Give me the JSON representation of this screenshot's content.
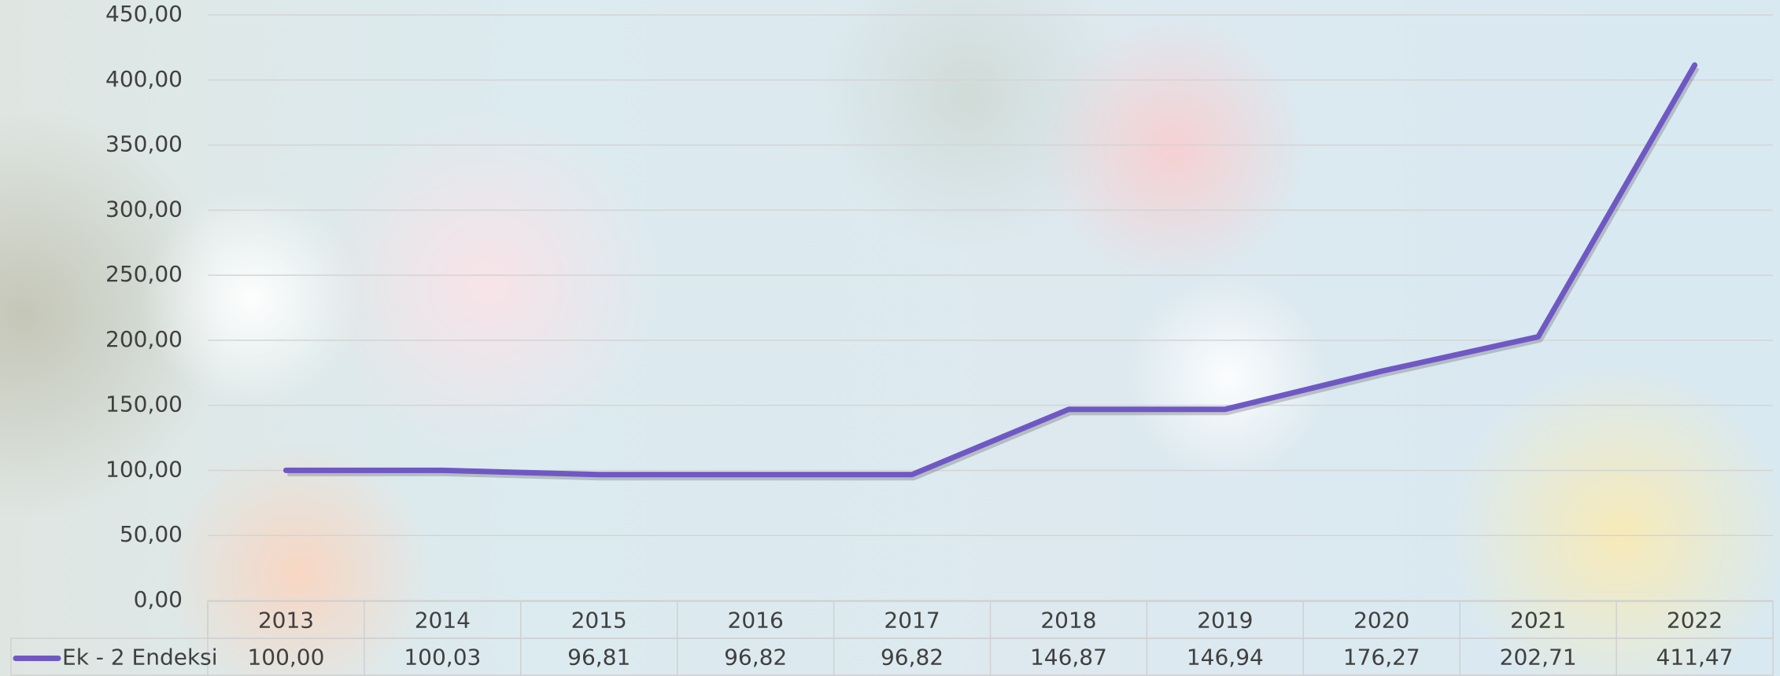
{
  "chart_data": {
    "type": "line",
    "categories": [
      "2013",
      "2014",
      "2015",
      "2016",
      "2017",
      "2018",
      "2019",
      "2020",
      "2021",
      "2022"
    ],
    "series": [
      {
        "name": "Ek - 2 Endeksi",
        "color": "#7058c4",
        "values": [
          100.0,
          100.03,
          96.81,
          96.82,
          96.82,
          146.87,
          146.94,
          176.27,
          202.71,
          411.47
        ],
        "value_labels": [
          "100,00",
          "100,03",
          "96,81",
          "96,82",
          "96,82",
          "146,87",
          "146,94",
          "176,27",
          "202,71",
          "411,47"
        ]
      }
    ],
    "ylim": [
      0,
      450
    ],
    "yticks": [
      {
        "value": 0,
        "label": "0,00"
      },
      {
        "value": 50,
        "label": "50,00"
      },
      {
        "value": 100,
        "label": "100,00"
      },
      {
        "value": 150,
        "label": "150,00"
      },
      {
        "value": 200,
        "label": "200,00"
      },
      {
        "value": 250,
        "label": "250,00"
      },
      {
        "value": 300,
        "label": "300,00"
      },
      {
        "value": 350,
        "label": "350,00"
      },
      {
        "value": 400,
        "label": "400,00"
      },
      {
        "value": 450,
        "label": "450,00"
      }
    ],
    "grid": true,
    "data_table": true
  }
}
